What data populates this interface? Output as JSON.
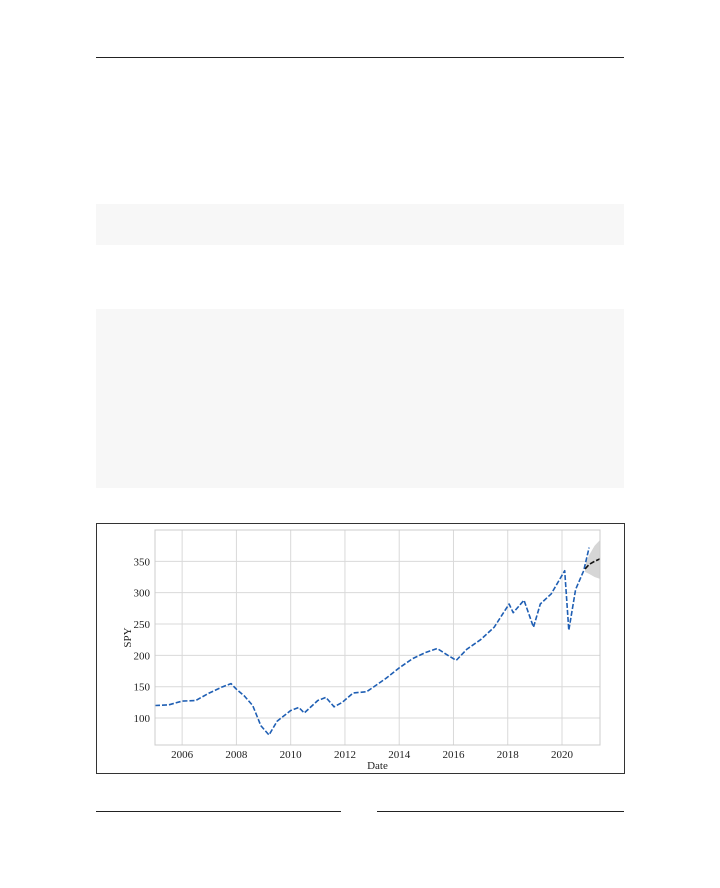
{
  "page": {
    "code_blocks": [
      "",
      ""
    ]
  },
  "chart_data": {
    "type": "line",
    "title": "",
    "xlabel": "Date",
    "ylabel": "SPY",
    "xlim": [
      2005.0,
      2021.4
    ],
    "ylim": [
      57,
      400
    ],
    "grid": true,
    "legend": "none",
    "xticks": [
      2006,
      2008,
      2010,
      2012,
      2014,
      2016,
      2018,
      2020
    ],
    "xtick_labels": [
      "2006",
      "2008",
      "2010",
      "2012",
      "2014",
      "2016",
      "2018",
      "2020"
    ],
    "yticks": [
      100,
      150,
      200,
      250,
      300,
      350
    ],
    "ytick_labels": [
      "100",
      "150",
      "200",
      "250",
      "300",
      "350"
    ],
    "colors": {
      "actual": "#1f5fb4",
      "forecast": "#111111",
      "interval": "#cfcfcf"
    },
    "series": [
      {
        "style": "dashed",
        "color": "#1f5fb4",
        "x": [
          2005.0,
          2005.5,
          2006.0,
          2006.5,
          2007.0,
          2007.5,
          2007.8,
          2008.0,
          2008.3,
          2008.6,
          2008.9,
          2009.2,
          2009.5,
          2010.0,
          2010.3,
          2010.5,
          2011.0,
          2011.3,
          2011.6,
          2011.9,
          2012.3,
          2012.8,
          2013.0,
          2013.5,
          2014.0,
          2014.5,
          2015.0,
          2015.4,
          2015.8,
          2016.1,
          2016.5,
          2017.0,
          2017.5,
          2018.05,
          2018.2,
          2018.6,
          2018.95,
          2019.2,
          2019.6,
          2020.1,
          2020.25,
          2020.5,
          2020.8,
          2021.0
        ],
        "y": [
          120,
          121,
          127,
          128,
          140,
          150,
          155,
          146,
          135,
          120,
          88,
          73,
          95,
          112,
          117,
          108,
          128,
          133,
          118,
          125,
          140,
          142,
          148,
          163,
          180,
          195,
          205,
          211,
          200,
          192,
          210,
          225,
          245,
          282,
          268,
          288,
          245,
          282,
          298,
          335,
          240,
          305,
          335,
          372
        ]
      },
      {
        "style": "dashed",
        "color": "#111111",
        "x": [
          2020.85,
          2021.0,
          2021.2,
          2021.4
        ],
        "y": [
          338,
          345,
          350,
          354
        ]
      }
    ],
    "confidence_band": {
      "x": [
        2020.85,
        2021.0,
        2021.2,
        2021.4
      ],
      "lower": [
        333,
        330,
        325,
        322
      ],
      "upper": [
        343,
        360,
        375,
        384
      ]
    }
  }
}
